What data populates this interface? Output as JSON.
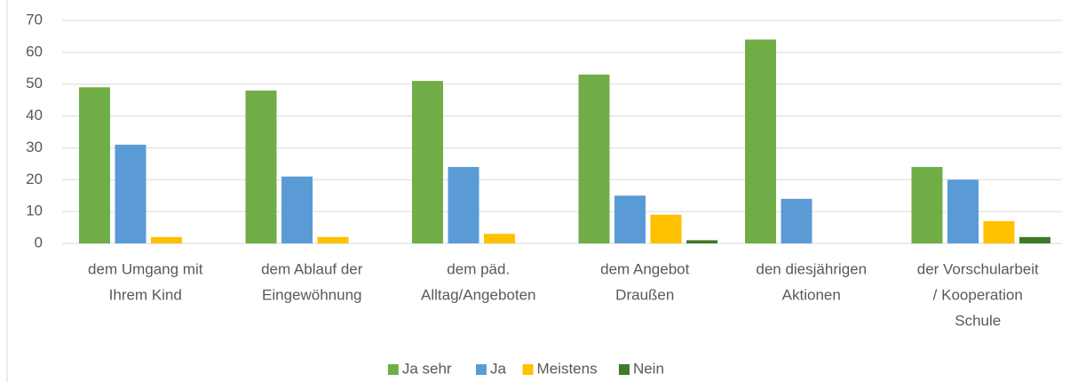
{
  "chart_data": {
    "type": "bar",
    "categories": [
      [
        "dem Umgang mit",
        "Ihrem Kind"
      ],
      [
        "dem Ablauf der",
        "Eingewöhnung"
      ],
      [
        "dem päd.",
        "Alltag/Angeboten"
      ],
      [
        "dem Angebot",
        "Draußen"
      ],
      [
        "den diesjährigen",
        "Aktionen"
      ],
      [
        "der Vorschularbeit",
        "/ Kooperation",
        "Schule"
      ]
    ],
    "series": [
      {
        "name": "Ja sehr",
        "color": "#70ad47",
        "values": [
          49,
          48,
          51,
          53,
          64,
          24
        ]
      },
      {
        "name": "Ja",
        "color": "#5b9bd5",
        "values": [
          31,
          21,
          24,
          15,
          14,
          20
        ]
      },
      {
        "name": "Meistens",
        "color": "#ffc000",
        "values": [
          2,
          2,
          3,
          9,
          0,
          7
        ]
      },
      {
        "name": "Nein",
        "color": "#3f7a2a",
        "values": [
          0,
          0,
          0,
          1,
          0,
          2
        ]
      }
    ],
    "ylim": [
      0,
      70
    ],
    "yticks": [
      0,
      10,
      20,
      30,
      40,
      50,
      60,
      70
    ],
    "grid": true,
    "legend": "bottom"
  }
}
